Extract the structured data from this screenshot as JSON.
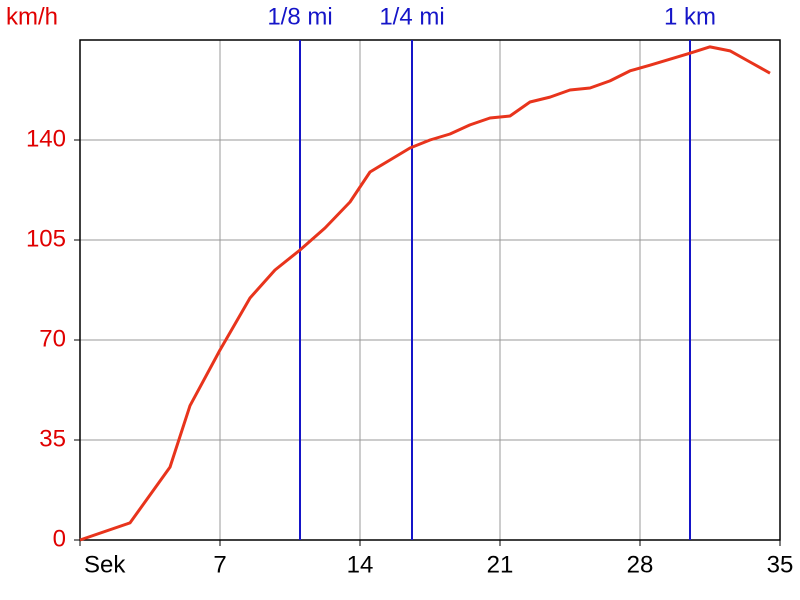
{
  "chart_data": {
    "type": "line",
    "y_label": "km/h",
    "xlim": [
      0,
      35
    ],
    "ylim": [
      0,
      175
    ],
    "xticks": [
      {
        "value": 0,
        "label": "Sek"
      },
      7,
      14,
      21,
      28,
      35
    ],
    "yticks": [
      0,
      35,
      70,
      105,
      140
    ],
    "grid": true,
    "annotations": [
      {
        "x": 11,
        "label": "1/8 mi"
      },
      {
        "x": 16.6,
        "label": "1/4 mi"
      },
      {
        "x": 30.5,
        "label": "1 km"
      }
    ],
    "annotation_color": "#1515c8",
    "y_tick_color": "#e00000",
    "series": [
      {
        "color": "#e8341c",
        "x": [
          0,
          2.5,
          4.5,
          5.5,
          7,
          8.5,
          9.75,
          11,
          12.25,
          13.5,
          14.5,
          15.5,
          16.5,
          17.5,
          18.5,
          19.5,
          20.5,
          21.5,
          22.5,
          23.5,
          24.5,
          25.5,
          26.5,
          27.5,
          28.5,
          29.5,
          30.5,
          31.5,
          32.5,
          33.5,
          34.5
        ],
        "values": [
          0,
          6,
          25.5,
          47,
          66.5,
          84.7,
          94.5,
          101.5,
          109.2,
          118.3,
          128.8,
          133,
          137.2,
          140,
          142.1,
          145.3,
          147.7,
          148.4,
          153.3,
          155,
          157.5,
          158.2,
          160.7,
          164.2,
          166.2,
          168.3,
          170.4,
          172.6,
          171.2,
          167.3,
          163.4
        ]
      }
    ]
  }
}
